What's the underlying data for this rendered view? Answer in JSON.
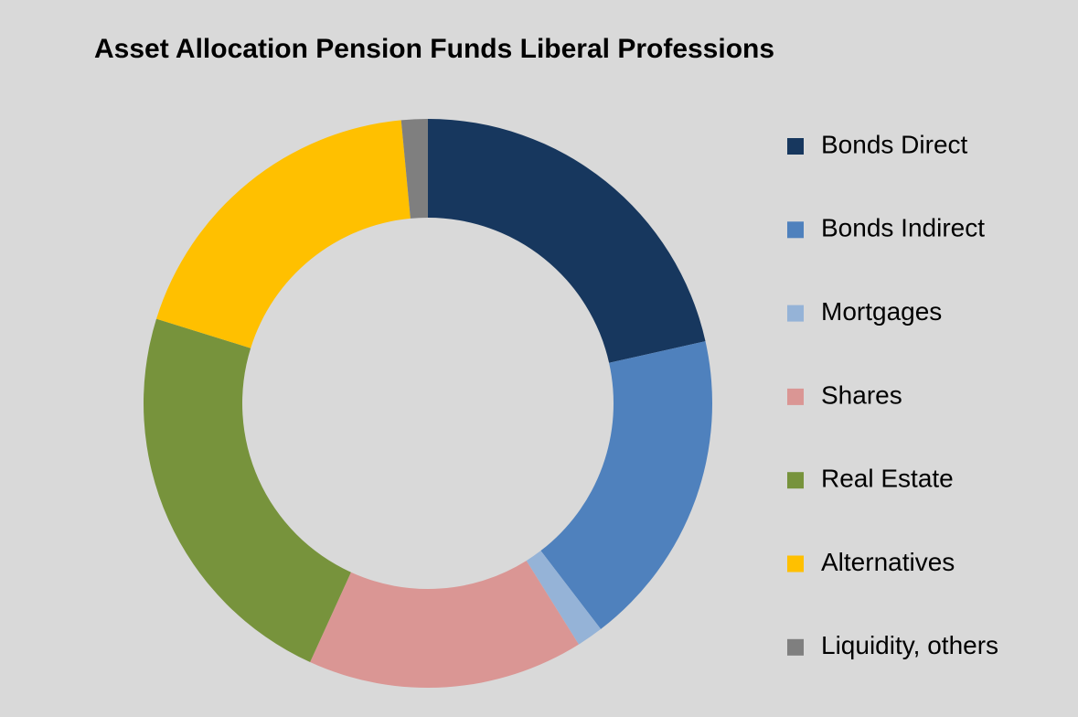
{
  "chart_data": {
    "type": "donut",
    "title": "Asset Allocation Pension Funds Liberal Professions",
    "categories": [
      "Bonds Direct",
      "Bonds Indirect",
      "Mortgages",
      "Shares",
      "Real Estate",
      "Alternatives",
      "Liquidity, others"
    ],
    "values": [
      21.5,
      18.1,
      1.5,
      15.7,
      23.0,
      18.7,
      1.5
    ],
    "colors": [
      "#17375e",
      "#4f81bd",
      "#95b3d7",
      "#da9694",
      "#77933c",
      "#ffc000",
      "#7f7f7f"
    ],
    "legend": "right"
  }
}
